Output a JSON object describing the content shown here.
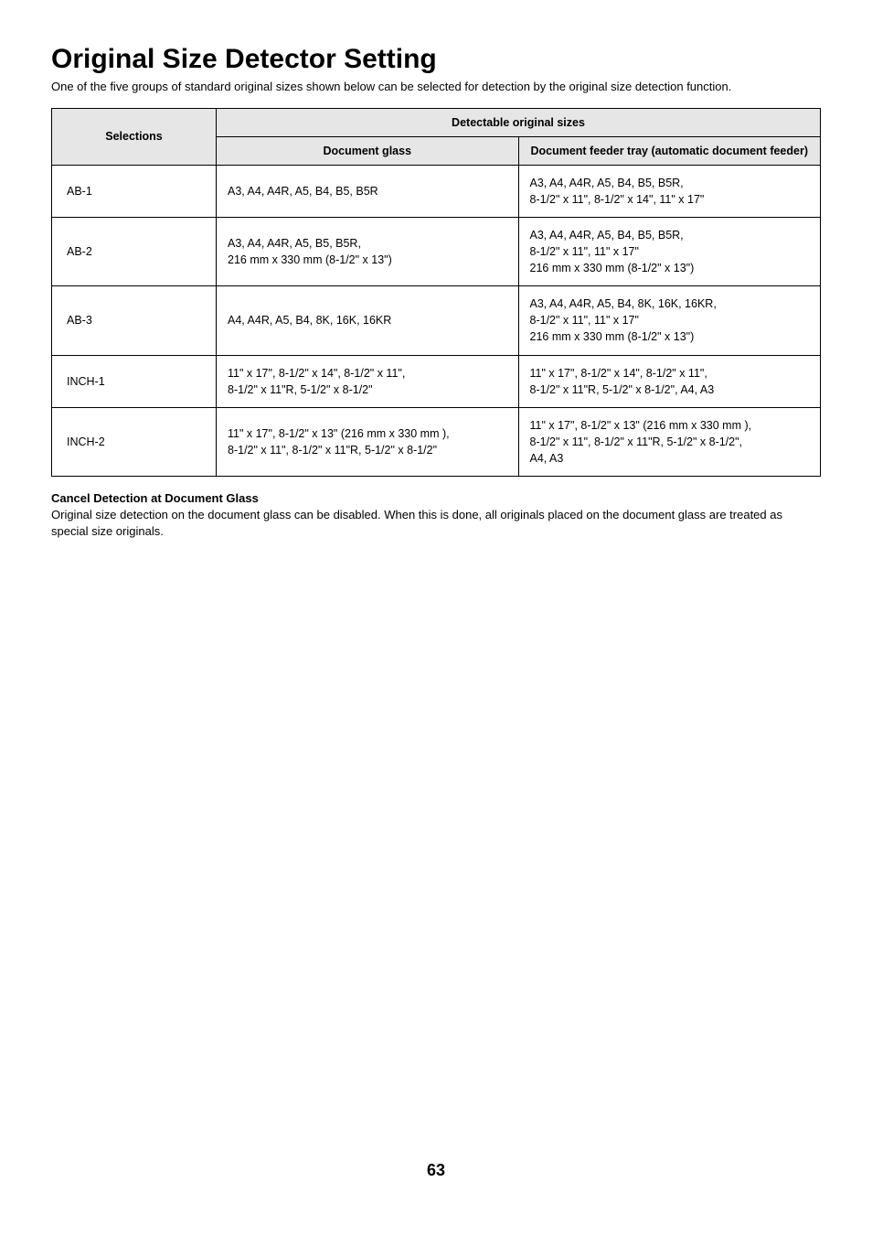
{
  "title": "Original Size Detector Setting",
  "intro": "One of the five groups of standard original sizes shown below can be selected for detection by the original size detection function.",
  "table": {
    "header_selections": "Selections",
    "header_detectable": "Detectable original sizes",
    "header_doc_glass": "Document glass",
    "header_feeder": "Document feeder tray (automatic document feeder)",
    "rows": [
      {
        "sel": "AB-1",
        "glass": "A3, A4, A4R, A5, B4, B5, B5R",
        "feeder": "A3, A4, A4R, A5, B4, B5, B5R,\n8-1/2\" x 11\", 8-1/2\" x 14\", 11\" x 17\""
      },
      {
        "sel": "AB-2",
        "glass": "A3, A4, A4R, A5, B5, B5R,\n216 mm x 330 mm (8-1/2\" x 13\")",
        "feeder": "A3, A4, A4R, A5, B4, B5, B5R,\n8-1/2\" x 11\", 11\" x 17\"\n216 mm x 330 mm (8-1/2\" x 13\")"
      },
      {
        "sel": "AB-3",
        "glass": "A4, A4R, A5, B4, 8K, 16K, 16KR",
        "feeder": "A3, A4, A4R, A5, B4, 8K, 16K, 16KR,\n8-1/2\" x 11\", 11\" x 17\"\n216 mm x 330 mm (8-1/2\" x 13\")"
      },
      {
        "sel": "INCH-1",
        "glass": "11\" x 17\", 8-1/2\" x 14\", 8-1/2\" x 11\",\n8-1/2\" x 11\"R, 5-1/2\" x 8-1/2\"",
        "feeder": "11\" x 17\", 8-1/2\" x 14\", 8-1/2\" x 11\",\n8-1/2\" x 11\"R, 5-1/2\" x 8-1/2\", A4, A3"
      },
      {
        "sel": "INCH-2",
        "glass": "11\" x 17\", 8-1/2\" x 13\" (216 mm x 330 mm ),\n8-1/2\" x 11\", 8-1/2\" x 11\"R, 5-1/2\" x 8-1/2\"",
        "feeder": "11\" x 17\", 8-1/2\" x 13\" (216 mm x 330 mm ),\n8-1/2\" x 11\", 8-1/2\" x 11\"R, 5-1/2\" x 8-1/2\",\nA4, A3"
      }
    ]
  },
  "subhead": "Cancel Detection at Document Glass",
  "subtext": "Original size detection on the document glass can be disabled. When this is done, all originals placed on the document glass are treated as special size originals.",
  "pagenum": "63"
}
